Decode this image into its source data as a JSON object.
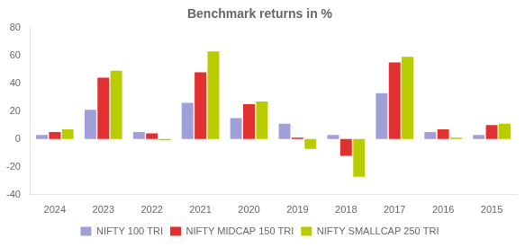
{
  "chart_data": {
    "type": "bar",
    "title": "Benchmark returns in %",
    "categories": [
      "2024",
      "2023",
      "2022",
      "2021",
      "2020",
      "2019",
      "2018",
      "2017",
      "2016",
      "2015"
    ],
    "series": [
      {
        "name": "NIFTY 100 TRI",
        "color": "#a0a0d8",
        "values": [
          3,
          21,
          5,
          26,
          15,
          11,
          3,
          33,
          5,
          3
        ]
      },
      {
        "name": "NIFTY MIDCAP 150 TRI",
        "color": "#e03030",
        "values": [
          5,
          44,
          4,
          48,
          25,
          1,
          -12,
          55,
          7,
          10
        ]
      },
      {
        "name": "NIFTY SMALLCAP 250 TRI",
        "color": "#b8cc00",
        "values": [
          7,
          49,
          -1,
          63,
          27,
          -7,
          -27,
          59,
          1,
          11
        ]
      }
    ],
    "ylim": [
      -40,
      80
    ],
    "yticks": [
      -40,
      -20,
      0,
      20,
      40,
      60,
      80
    ],
    "grid": false,
    "legend": "bottom"
  }
}
